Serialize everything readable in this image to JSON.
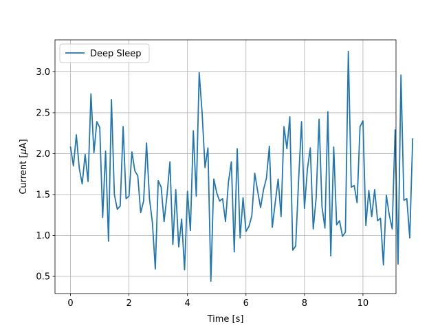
{
  "chart_data": {
    "type": "line",
    "title": "",
    "xlabel": "Time [s]",
    "ylabel_prefix": "Current [",
    "ylabel_mu": "μ",
    "ylabel_suffix": "A]",
    "xlim": [
      -0.53,
      11.13
    ],
    "ylim": [
      0.29,
      3.39
    ],
    "xticks": [
      0,
      2,
      4,
      6,
      8,
      10
    ],
    "xtick_labels": [
      "0",
      "2",
      "4",
      "6",
      "8",
      "10"
    ],
    "yticks": [
      0.5,
      1.0,
      1.5,
      2.0,
      2.5,
      3.0
    ],
    "ytick_labels": [
      "0.5",
      "1.0",
      "1.5",
      "2.0",
      "2.5",
      "3.0"
    ],
    "grid": true,
    "legend_position": "upper-left",
    "series": [
      {
        "name": "Deep Sleep",
        "color": "#1f77b4",
        "x_start": 0,
        "x_step": 0.1,
        "values": [
          2.08,
          1.85,
          2.23,
          1.82,
          1.63,
          1.99,
          1.66,
          2.73,
          2.01,
          2.39,
          2.32,
          1.22,
          2.03,
          0.93,
          2.66,
          1.5,
          1.32,
          1.36,
          2.33,
          1.45,
          1.48,
          2.02,
          1.79,
          1.73,
          1.28,
          1.42,
          2.13,
          1.45,
          1.16,
          0.59,
          1.67,
          1.59,
          1.17,
          1.49,
          1.9,
          0.89,
          1.56,
          0.86,
          1.2,
          0.58,
          1.54,
          1.06,
          2.28,
          1.48,
          2.99,
          2.5,
          1.83,
          2.07,
          0.44,
          1.69,
          1.52,
          1.42,
          1.45,
          1.17,
          1.65,
          1.9,
          0.8,
          2.06,
          0.97,
          1.46,
          1.05,
          1.11,
          1.24,
          1.76,
          1.54,
          1.34,
          1.56,
          1.7,
          2.09,
          1.1,
          1.4,
          1.69,
          1.23,
          2.33,
          2.06,
          2.45,
          0.82,
          0.87,
          1.68,
          2.39,
          1.33,
          1.81,
          2.07,
          1.08,
          1.46,
          2.42,
          1.35,
          1.09,
          2.51,
          0.75,
          2.08,
          1.13,
          1.18,
          0.99,
          1.04,
          3.25,
          1.59,
          1.61,
          1.4,
          2.33,
          2.4,
          1.12,
          1.55,
          1.23,
          1.56,
          1.18,
          1.21,
          0.64,
          1.49,
          1.25,
          1.08,
          2.29,
          0.65,
          2.96,
          1.43,
          1.45,
          0.97,
          2.18
        ]
      }
    ]
  }
}
